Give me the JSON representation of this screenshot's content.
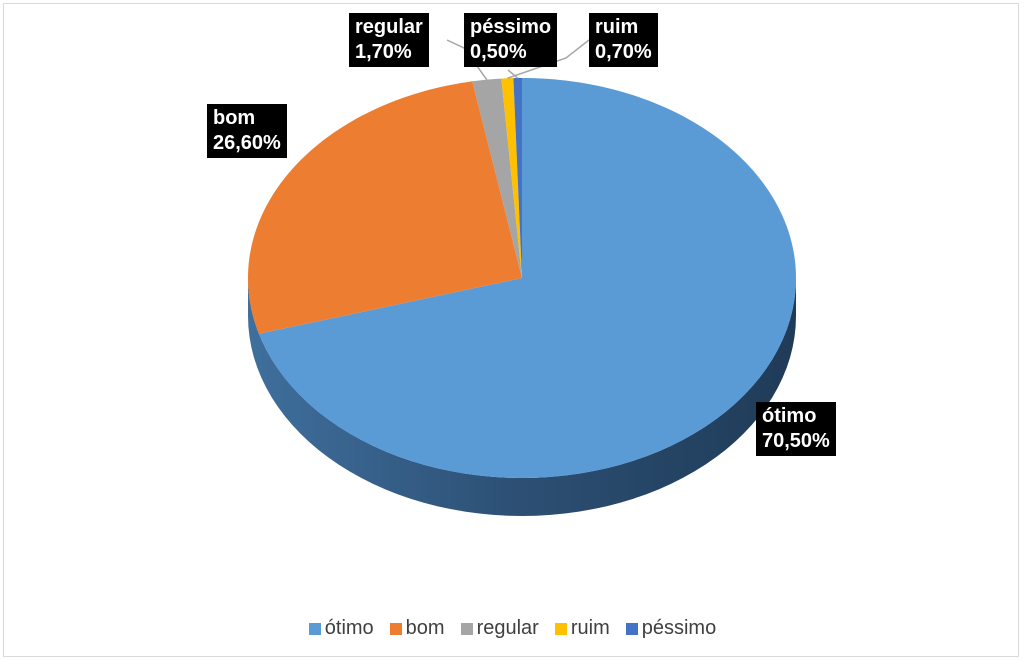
{
  "chart_data": {
    "type": "pie",
    "categories": [
      "ótimo",
      "bom",
      "regular",
      "ruim",
      "péssimo"
    ],
    "values": [
      70.5,
      26.6,
      1.7,
      0.7,
      0.5
    ],
    "value_labels": [
      "70,50%",
      "26,60%",
      "1,70%",
      "0,70%",
      "0,50%"
    ],
    "slice_colors": [
      "#5b9bd5",
      "#ed7d31",
      "#a5a5a5",
      "#ffc000",
      "#4472c4"
    ],
    "data_labels": [
      {
        "category": "ótimo",
        "value": "70,50%"
      },
      {
        "category": "bom",
        "value": "26,60%"
      },
      {
        "category": "regular",
        "value": "1,70%"
      },
      {
        "category": "péssimo",
        "value": "0,50%"
      },
      {
        "category": "ruim",
        "value": "0,70%"
      }
    ],
    "legend": {
      "position": "bottom",
      "items": [
        {
          "label": "ótimo",
          "color": "#5b9bd5"
        },
        {
          "label": "bom",
          "color": "#ed7d31"
        },
        {
          "label": "regular",
          "color": "#a5a5a5"
        },
        {
          "label": "ruim",
          "color": "#ffc000"
        },
        {
          "label": "péssimo",
          "color": "#4472c4"
        }
      ]
    },
    "style": "3d"
  }
}
